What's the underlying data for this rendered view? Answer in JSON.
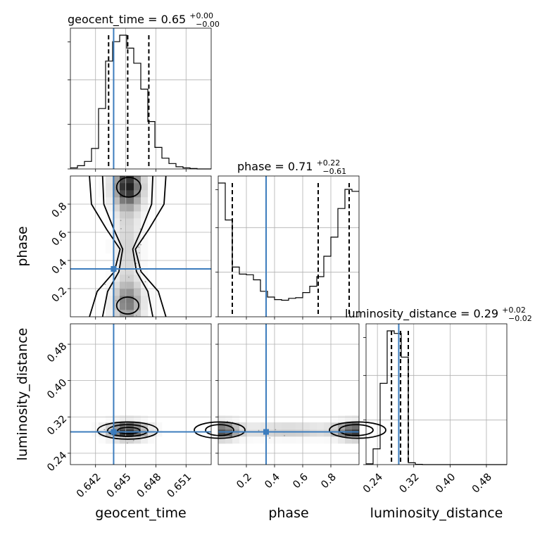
{
  "chart_data": {
    "type": "corner",
    "parameters": [
      "geocent_time",
      "phase",
      "luminosity_distance"
    ],
    "titles": [
      {
        "param": "geocent_time",
        "text": "geocent_time = 0.65",
        "upper": "+0.00",
        "lower": "−0.00"
      },
      {
        "param": "phase",
        "text": "phase = 0.71",
        "upper": "+0.22",
        "lower": "−0.61"
      },
      {
        "param": "luminosity_distance",
        "text": "luminosity_distance = 0.29",
        "upper": "+0.02",
        "lower": "−0.02"
      }
    ],
    "axes": {
      "geocent_time": {
        "range": [
          0.6395,
          0.6535
        ],
        "ticks": [
          0.642,
          0.645,
          0.648,
          0.651
        ],
        "tick_labels": [
          "0.642",
          "0.645",
          "0.648",
          "0.651"
        ],
        "label": "geocent_time"
      },
      "phase": {
        "range": [
          0.0,
          1.0
        ],
        "ticks": [
          0.2,
          0.4,
          0.6,
          0.8
        ],
        "tick_labels": [
          "0.2",
          "0.4",
          "0.6",
          "0.8"
        ],
        "label": "phase"
      },
      "luminosity_distance": {
        "range": [
          0.215,
          0.525
        ],
        "ticks": [
          0.24,
          0.32,
          0.4,
          0.48
        ],
        "tick_labels": [
          "0.24",
          "0.32",
          "0.40",
          "0.48"
        ],
        "label": "luminosity_distance"
      }
    },
    "truths": {
      "geocent_time": 0.6438,
      "phase": 0.34,
      "luminosity_distance": 0.287
    },
    "quantiles": {
      "geocent_time": [
        0.6433,
        0.6452,
        0.6473
      ],
      "phase": [
        0.1,
        0.71,
        0.93
      ],
      "luminosity_distance": [
        0.271,
        0.291,
        0.308
      ]
    },
    "histograms": {
      "geocent_time": {
        "bin_edges": [
          0.6395,
          0.6402,
          0.6409,
          0.6416,
          0.6423,
          0.643,
          0.6437,
          0.6444,
          0.6451,
          0.6458,
          0.6465,
          0.6472,
          0.6479,
          0.6486,
          0.6493,
          0.65,
          0.6507,
          0.6514,
          0.6521,
          0.6528,
          0.6535
        ],
        "counts": [
          0.5,
          1.5,
          3.5,
          9.5,
          28,
          50,
          59,
          62,
          56,
          49,
          37,
          22,
          10,
          5,
          2.5,
          1,
          0.5,
          0.2,
          0,
          0
        ]
      },
      "phase": {
        "bin_edges": [
          0.0,
          0.05,
          0.1,
          0.15,
          0.2,
          0.25,
          0.3,
          0.35,
          0.4,
          0.45,
          0.5,
          0.55,
          0.6,
          0.65,
          0.7,
          0.75,
          0.8,
          0.85,
          0.9,
          0.95,
          1.0
        ],
        "counts": [
          210,
          152,
          78,
          67,
          66,
          58,
          40,
          31,
          27,
          26,
          29,
          30,
          38,
          48,
          63,
          95,
          125,
          170,
          200,
          197
        ]
      },
      "luminosity_distance": {
        "bin_edges": [
          0.215,
          0.2305,
          0.246,
          0.2615,
          0.277,
          0.2925,
          0.308,
          0.3235,
          0.339,
          0.3545,
          0.37,
          0.3855,
          0.401,
          0.4165,
          0.432,
          0.4475,
          0.463,
          0.4785,
          0.494,
          0.5095,
          0.525
        ],
        "counts": [
          0.3,
          6,
          31,
          51,
          50,
          41,
          0.7,
          0.1,
          0,
          0,
          0,
          0,
          0,
          0,
          0,
          0,
          0,
          0,
          0,
          0
        ]
      }
    },
    "grid": true,
    "colors": {
      "truth": "#3d7dbd",
      "line": "#000000",
      "grid": "#b0b0b0"
    }
  }
}
